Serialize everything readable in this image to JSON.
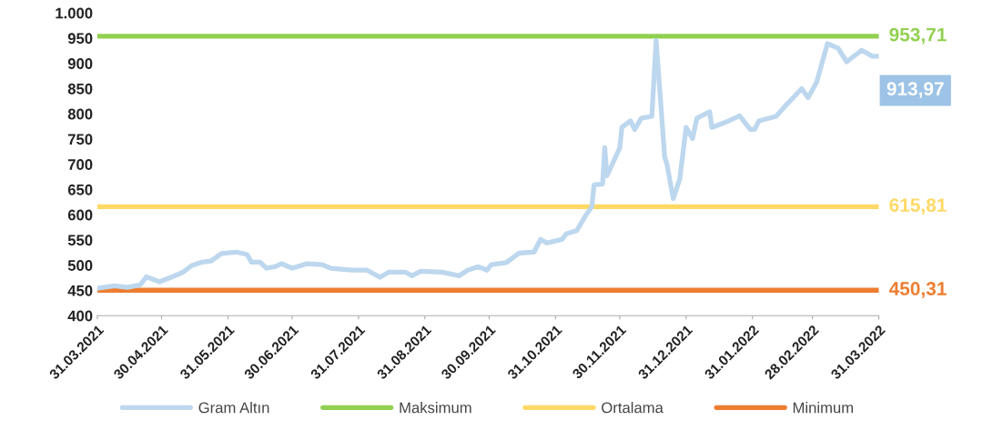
{
  "chart_data": {
    "type": "line",
    "x": [
      "2021-03-31",
      "2022-03-31"
    ],
    "series": [
      {
        "name": "Gram Altın",
        "color": "#bdd7ee",
        "x": [
          "2021-03-31",
          "2021-04-08",
          "2021-04-14",
          "2021-04-20",
          "2021-04-23",
          "2021-04-29",
          "2021-05-05",
          "2021-05-10",
          "2021-05-14",
          "2021-05-19",
          "2021-05-23",
          "2021-05-28",
          "2021-06-04",
          "2021-06-09",
          "2021-06-11",
          "2021-06-15",
          "2021-06-18",
          "2021-06-22",
          "2021-06-25",
          "2021-06-30",
          "2021-07-07",
          "2021-07-14",
          "2021-07-18",
          "2021-07-28",
          "2021-08-04",
          "2021-08-10",
          "2021-08-14",
          "2021-08-22",
          "2021-08-25",
          "2021-08-29",
          "2021-09-08",
          "2021-09-16",
          "2021-09-20",
          "2021-09-25",
          "2021-09-29",
          "2021-10-01",
          "2021-10-08",
          "2021-10-14",
          "2021-10-21",
          "2021-10-24",
          "2021-10-27",
          "2021-11-03",
          "2021-11-05",
          "2021-11-10",
          "2021-11-14",
          "2021-11-17",
          "2021-11-18",
          "2021-11-22",
          "2021-11-23",
          "2021-11-24",
          "2021-11-30",
          "2021-12-01",
          "2021-12-05",
          "2021-12-07",
          "2021-12-10",
          "2021-12-15",
          "2021-12-17",
          "2021-12-21",
          "2021-12-22",
          "2021-12-25",
          "2021-12-28",
          "2021-12-31",
          "2022-01-03",
          "2022-01-05",
          "2022-01-11",
          "2022-01-12",
          "2022-01-20",
          "2022-01-25",
          "2022-01-30",
          "2022-02-01",
          "2022-02-03",
          "2022-02-11",
          "2022-02-15",
          "2022-02-23",
          "2022-02-26",
          "2022-03-02",
          "2022-03-07",
          "2022-03-12",
          "2022-03-16",
          "2022-03-23",
          "2022-03-28",
          "2022-03-31"
        ],
        "values": [
          454,
          459,
          456,
          461,
          477,
          467,
          477,
          486,
          499,
          506,
          508,
          523,
          526,
          521,
          506,
          506,
          494,
          497,
          503,
          494,
          503,
          501,
          494,
          490,
          490,
          476,
          486,
          486,
          479,
          488,
          486,
          479,
          490,
          497,
          490,
          501,
          505,
          524,
          526,
          551,
          544,
          551,
          562,
          569,
          598,
          616,
          659,
          661,
          733,
          677,
          732,
          773,
          786,
          769,
          791,
          795,
          945,
          714,
          701,
          632,
          670,
          773,
          751,
          791,
          804,
          773,
          786,
          796,
          769,
          769,
          786,
          795,
          814,
          850,
          832,
          863,
          939,
          930,
          903,
          926,
          914,
          913.97
        ],
        "value_labels": [
          null,
          null,
          null,
          null,
          null,
          null,
          null,
          null,
          null,
          null,
          null,
          null,
          null,
          null,
          null,
          null,
          null,
          null,
          null,
          null,
          null,
          null,
          null,
          null,
          null,
          null,
          null,
          null,
          null,
          null,
          null,
          null,
          null,
          null,
          null,
          null,
          null,
          null,
          null,
          null,
          null,
          null,
          null,
          null,
          null,
          null,
          null,
          null,
          null,
          null,
          null,
          null,
          null,
          null,
          null,
          null,
          null,
          null,
          null,
          null,
          null,
          null,
          null,
          null,
          null,
          null,
          null,
          null,
          null,
          null,
          null,
          null,
          null,
          null,
          null,
          null,
          null,
          null,
          null,
          null,
          null,
          "913,97"
        ]
      },
      {
        "name": "Maksimum",
        "color": "#92d050",
        "values": [
          953.71,
          953.71
        ],
        "value_labels": [
          null,
          "953,71"
        ]
      },
      {
        "name": "Ortalama",
        "color": "#ffd966",
        "values": [
          615.81,
          615.81
        ],
        "value_labels": [
          null,
          "615,81"
        ]
      },
      {
        "name": "Minimum",
        "color": "#ed7d31",
        "values": [
          450.31,
          450.31
        ],
        "value_labels": [
          null,
          "450,31"
        ]
      }
    ],
    "xlim": [
      "2021-03-31",
      "2022-03-31"
    ],
    "xticks": [
      {
        "value": "2021-03-31",
        "label": "31.03.2021"
      },
      {
        "value": "2021-04-30",
        "label": "30.04.2021"
      },
      {
        "value": "2021-05-31",
        "label": "31.05.2021"
      },
      {
        "value": "2021-06-30",
        "label": "30.06.2021"
      },
      {
        "value": "2021-07-31",
        "label": "31.07.2021"
      },
      {
        "value": "2021-08-31",
        "label": "31.08.2021"
      },
      {
        "value": "2021-09-30",
        "label": "30.09.2021"
      },
      {
        "value": "2021-10-31",
        "label": "31.10.2021"
      },
      {
        "value": "2021-11-30",
        "label": "30.11.2021"
      },
      {
        "value": "2021-12-31",
        "label": "31.12.2021"
      },
      {
        "value": "2022-01-31",
        "label": "31.01.2022"
      },
      {
        "value": "2022-02-28",
        "label": "28.02.2022"
      },
      {
        "value": "2022-03-31",
        "label": "31.03.2022"
      }
    ],
    "ylim": [
      400,
      1000
    ],
    "yticks": [
      400,
      450,
      500,
      550,
      600,
      650,
      700,
      750,
      800,
      850,
      900,
      950,
      {
        "value": 1000,
        "label": "1.000"
      }
    ],
    "grid": false,
    "legend": "bottom",
    "marker": "none",
    "line_style": "solid"
  }
}
